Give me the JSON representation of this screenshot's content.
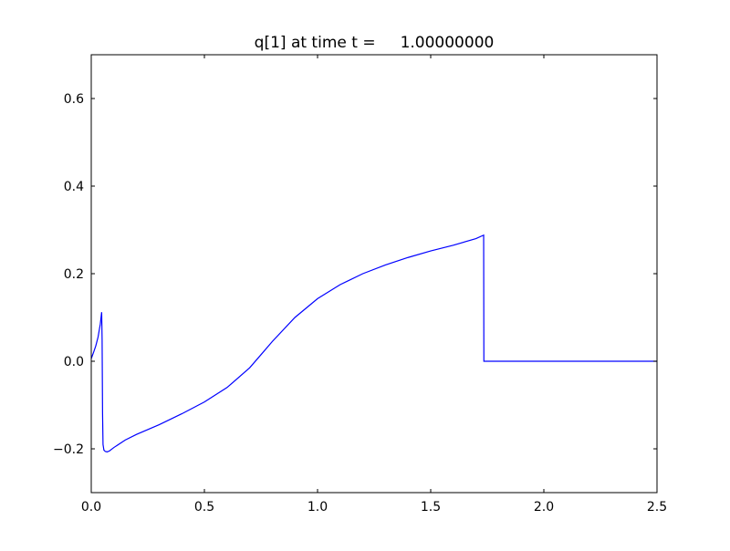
{
  "chart_data": {
    "type": "line",
    "title": "q[1] at time t =     1.00000000",
    "xlabel": "",
    "ylabel": "",
    "xlim": [
      0.0,
      2.5
    ],
    "ylim": [
      -0.3,
      0.7
    ],
    "xticks": [
      "0.0",
      "0.5",
      "1.0",
      "1.5",
      "2.0",
      "2.5"
    ],
    "yticks": [
      "−0.2",
      "0.0",
      "0.2",
      "0.4",
      "0.6"
    ],
    "xtick_values": [
      0.0,
      0.5,
      1.0,
      1.5,
      2.0,
      2.5
    ],
    "ytick_values": [
      -0.2,
      0.0,
      0.2,
      0.4,
      0.6
    ],
    "grid": false,
    "series": [
      {
        "color": "#0000ff",
        "x": [
          0.0,
          0.01,
          0.02,
          0.03,
          0.04,
          0.046,
          0.048,
          0.05,
          0.052,
          0.056,
          0.062,
          0.07,
          0.08,
          0.1,
          0.15,
          0.2,
          0.3,
          0.4,
          0.5,
          0.6,
          0.7,
          0.75,
          0.8,
          0.9,
          1.0,
          1.1,
          1.2,
          1.3,
          1.4,
          1.5,
          1.6,
          1.7,
          1.734,
          1.735,
          1.74,
          2.0,
          2.5
        ],
        "y": [
          0.006,
          0.02,
          0.035,
          0.055,
          0.085,
          0.112,
          0.05,
          -0.12,
          -0.19,
          -0.203,
          -0.206,
          -0.207,
          -0.205,
          -0.197,
          -0.18,
          -0.167,
          -0.145,
          -0.12,
          -0.093,
          -0.06,
          -0.015,
          0.015,
          0.045,
          0.1,
          0.143,
          0.175,
          0.2,
          0.22,
          0.237,
          0.252,
          0.265,
          0.28,
          0.288,
          0.0,
          0.0,
          0.0,
          0.0
        ]
      }
    ]
  }
}
